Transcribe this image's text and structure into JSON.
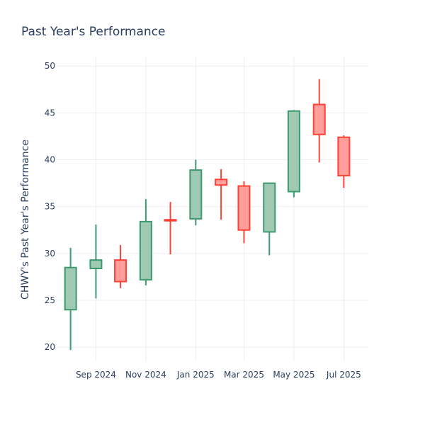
{
  "chart_data": {
    "type": "candlestick",
    "title": "Past Year's Performance",
    "ylabel": "CHWY's Past Year's Performance",
    "xlabel": "",
    "ylim": [
      18.5,
      51
    ],
    "yticks": [
      20,
      25,
      30,
      35,
      40,
      45,
      50
    ],
    "xlim": [
      "2024-07-15",
      "2025-07-31"
    ],
    "xticks": [
      {
        "date": "2024-09-01",
        "label": "Sep 2024"
      },
      {
        "date": "2024-11-01",
        "label": "Nov 2024"
      },
      {
        "date": "2025-01-01",
        "label": "Jan 2025"
      },
      {
        "date": "2025-03-01",
        "label": "Mar 2025"
      },
      {
        "date": "2025-05-01",
        "label": "May 2025"
      },
      {
        "date": "2025-07-01",
        "label": "Jul 2025"
      }
    ],
    "grid": true,
    "colors": {
      "increasing_fill": "#9fc9b3",
      "increasing_line": "#3d9970",
      "decreasing_fill": "#ff9e9a",
      "decreasing_line": "#ff4136"
    },
    "candles": [
      {
        "date": "2024-08-01",
        "open": 24.0,
        "high": 30.6,
        "low": 19.7,
        "close": 28.5
      },
      {
        "date": "2024-09-01",
        "open": 28.4,
        "high": 33.1,
        "low": 25.2,
        "close": 29.3
      },
      {
        "date": "2024-10-01",
        "open": 29.3,
        "high": 30.9,
        "low": 26.3,
        "close": 27.0
      },
      {
        "date": "2024-11-01",
        "open": 27.2,
        "high": 35.8,
        "low": 26.6,
        "close": 33.4
      },
      {
        "date": "2024-12-01",
        "open": 33.6,
        "high": 35.5,
        "low": 29.9,
        "close": 33.5
      },
      {
        "date": "2025-01-01",
        "open": 33.7,
        "high": 40.0,
        "low": 33.0,
        "close": 38.9
      },
      {
        "date": "2025-02-01",
        "open": 37.9,
        "high": 39.0,
        "low": 33.6,
        "close": 37.3
      },
      {
        "date": "2025-03-01",
        "open": 37.2,
        "high": 37.7,
        "low": 31.1,
        "close": 32.5
      },
      {
        "date": "2025-04-01",
        "open": 32.3,
        "high": 37.5,
        "low": 29.8,
        "close": 37.5
      },
      {
        "date": "2025-05-01",
        "open": 36.6,
        "high": 45.3,
        "low": 36.0,
        "close": 45.2
      },
      {
        "date": "2025-06-01",
        "open": 45.9,
        "high": 48.6,
        "low": 39.7,
        "close": 42.7
      },
      {
        "date": "2025-07-01",
        "open": 42.4,
        "high": 42.6,
        "low": 37.0,
        "close": 38.3
      }
    ]
  }
}
